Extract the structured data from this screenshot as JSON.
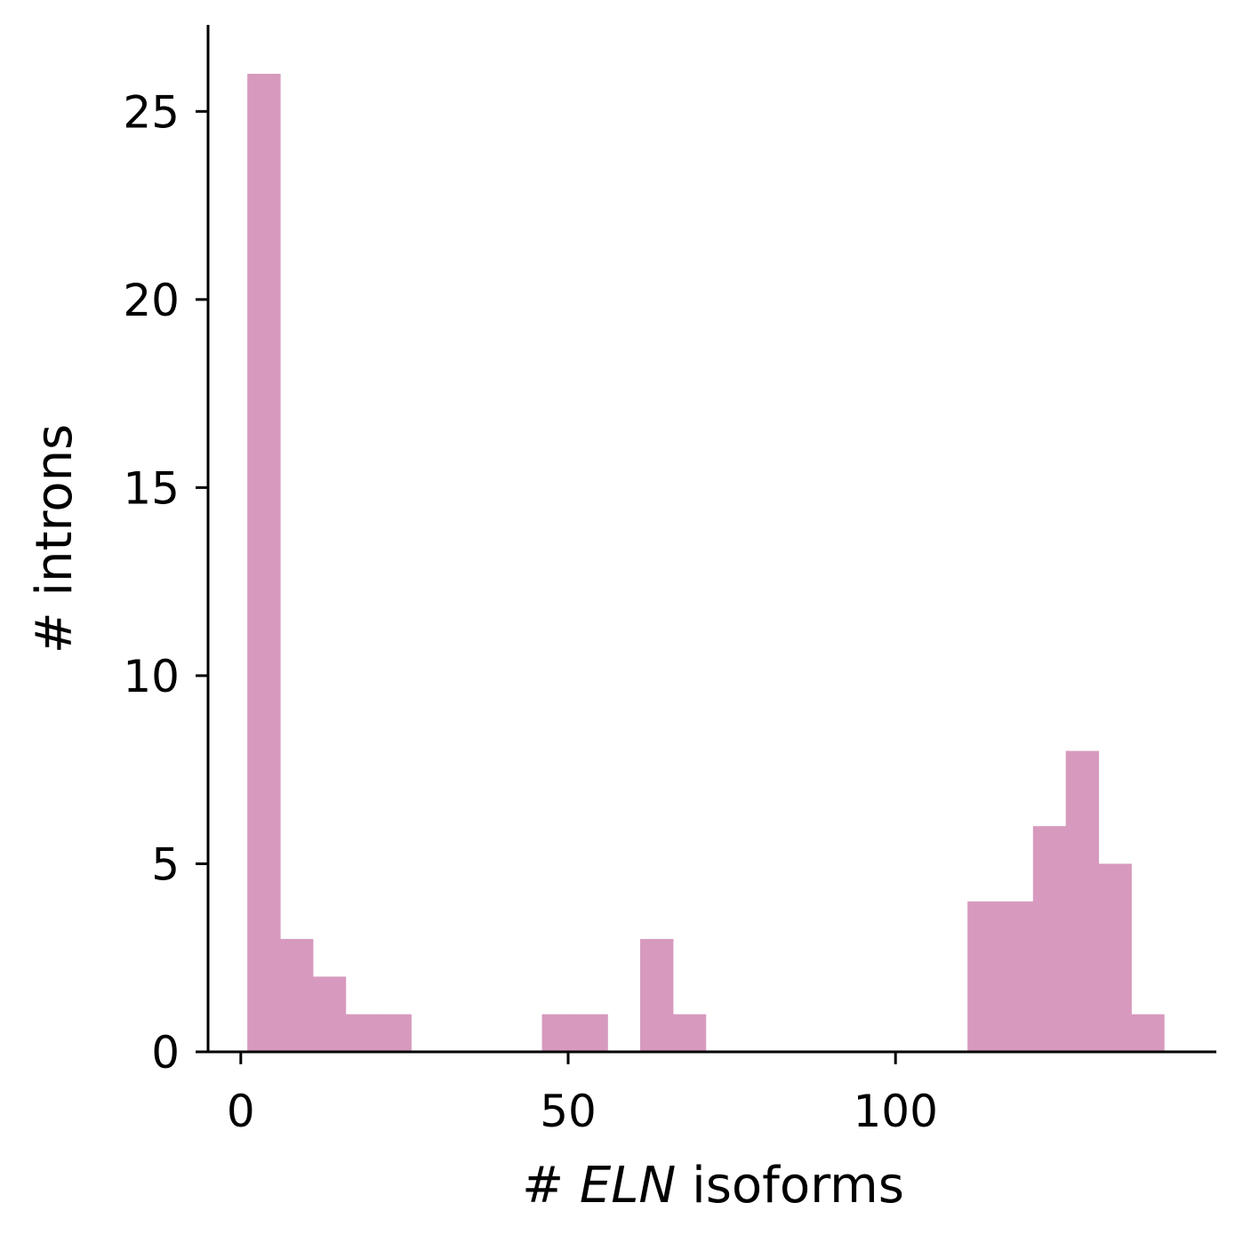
{
  "chart_data": {
    "type": "bar",
    "histogram": true,
    "bin_width": 5,
    "bins": [
      {
        "x0": 1,
        "x1": 6,
        "count": 26
      },
      {
        "x0": 6,
        "x1": 11,
        "count": 3
      },
      {
        "x0": 11,
        "x1": 16,
        "count": 2
      },
      {
        "x0": 16,
        "x1": 21,
        "count": 1
      },
      {
        "x0": 21,
        "x1": 26,
        "count": 1
      },
      {
        "x0": 46,
        "x1": 51,
        "count": 1
      },
      {
        "x0": 51,
        "x1": 56,
        "count": 1
      },
      {
        "x0": 61,
        "x1": 66,
        "count": 3
      },
      {
        "x0": 66,
        "x1": 71,
        "count": 1
      },
      {
        "x0": 111,
        "x1": 116,
        "count": 4
      },
      {
        "x0": 116,
        "x1": 121,
        "count": 4
      },
      {
        "x0": 121,
        "x1": 126,
        "count": 6
      },
      {
        "x0": 126,
        "x1": 131,
        "count": 8
      },
      {
        "x0": 131,
        "x1": 136,
        "count": 5
      },
      {
        "x0": 136,
        "x1": 141,
        "count": 1
      }
    ],
    "xlabel_prefix": "# ",
    "xlabel_italic": "ELN",
    "xlabel_suffix": " isoforms",
    "ylabel": "# introns",
    "xlim": [
      -5,
      149
    ],
    "ylim": [
      0,
      27.3
    ],
    "xticks": [
      {
        "value": 0,
        "label": "0"
      },
      {
        "value": 50,
        "label": "50"
      },
      {
        "value": 100,
        "label": "100"
      }
    ],
    "yticks": [
      {
        "value": 0,
        "label": "0"
      },
      {
        "value": 5,
        "label": "5"
      },
      {
        "value": 10,
        "label": "10"
      },
      {
        "value": 15,
        "label": "15"
      },
      {
        "value": 20,
        "label": "20"
      },
      {
        "value": 25,
        "label": "25"
      }
    ],
    "grid": false,
    "bar_color": "#d79abe"
  }
}
